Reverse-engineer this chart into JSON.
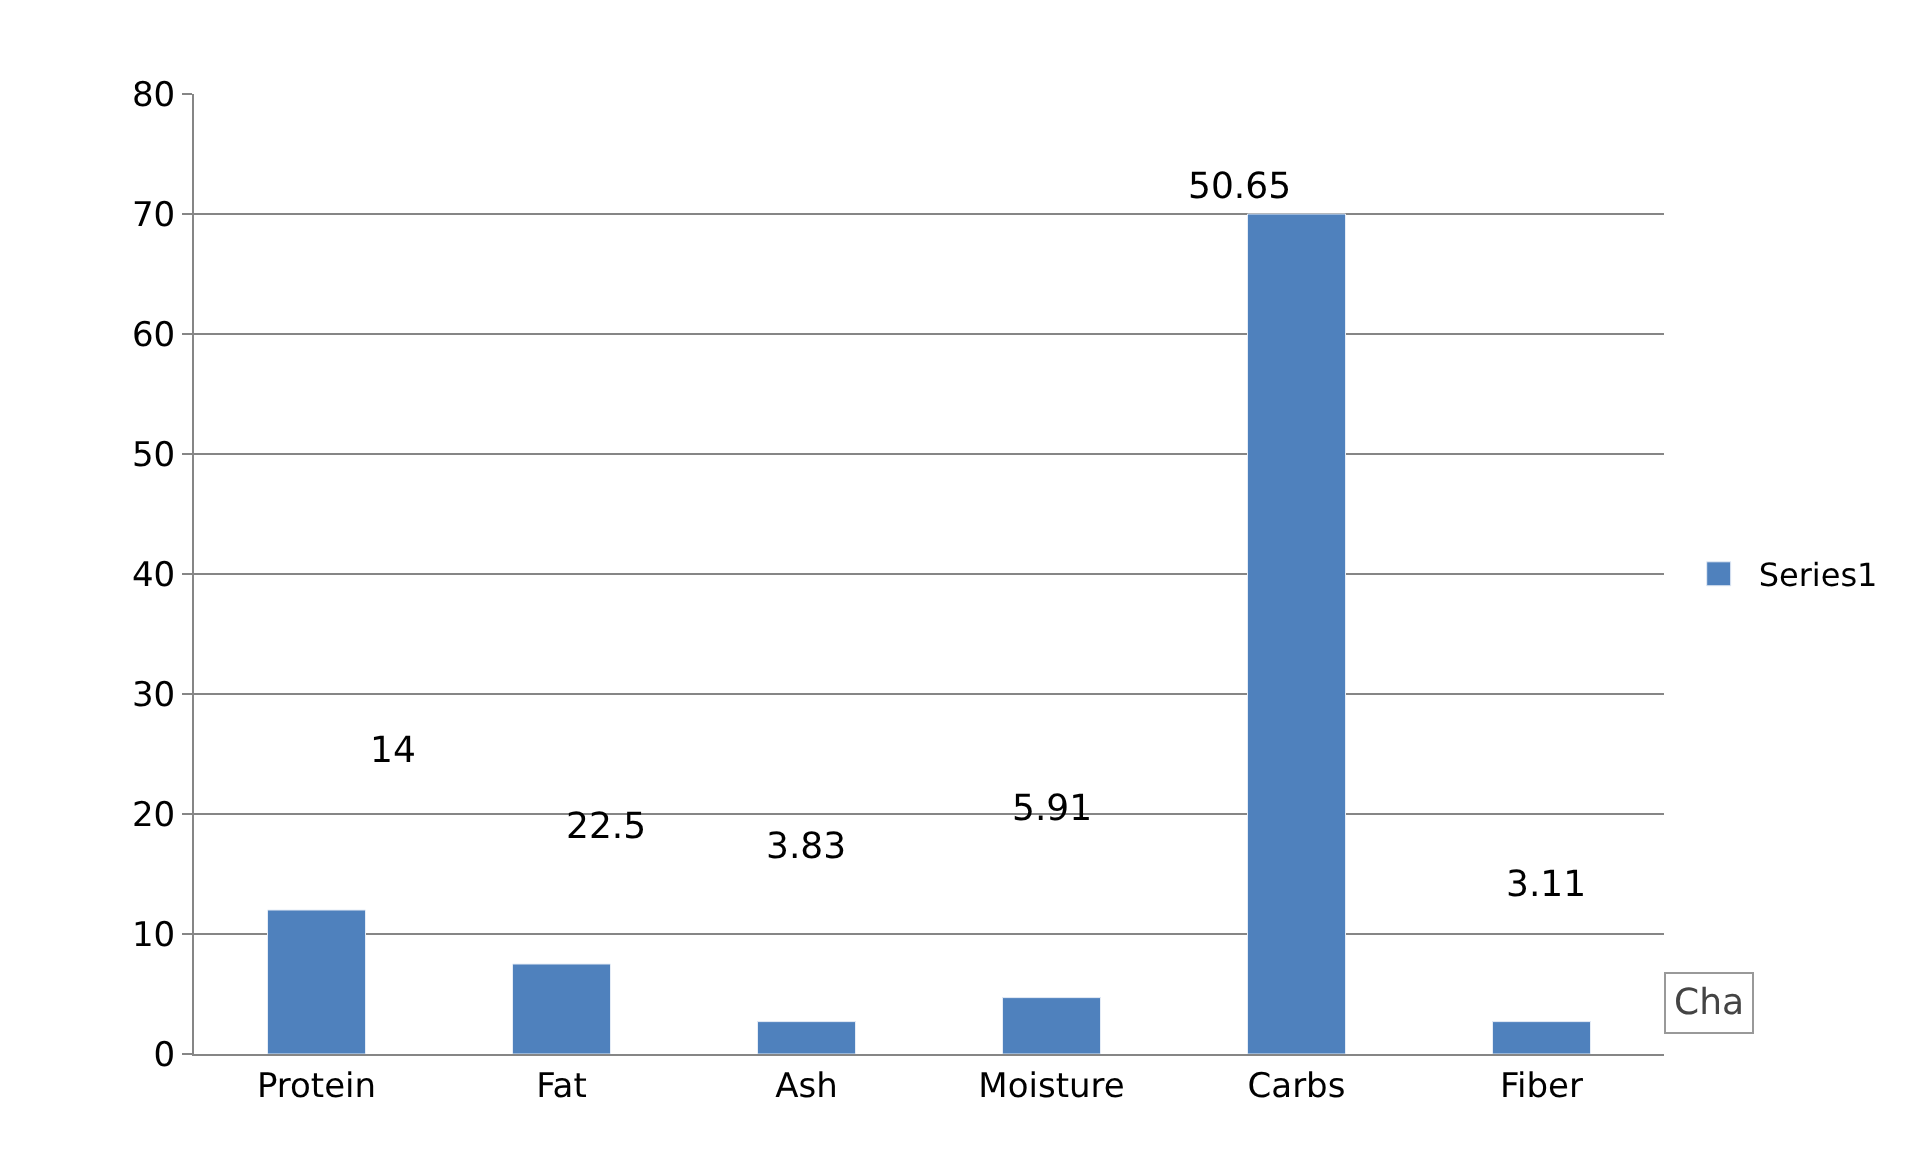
{
  "chart_data": {
    "type": "bar",
    "categories": [
      "Protein",
      "Fat",
      "Ash",
      "Moisture",
      "Carbs",
      "Fiber"
    ],
    "series": [
      {
        "name": "Series1",
        "color": "#4f81bd",
        "values": [
          12,
          7.5,
          2.7,
          4.7,
          70,
          2.7
        ]
      }
    ],
    "ylim": [
      0,
      80
    ],
    "yticks": [
      0,
      10,
      20,
      30,
      40,
      50,
      60,
      70,
      80
    ],
    "grid": "y",
    "legend": "right",
    "annotations": [
      "14",
      "22.5",
      "3.83",
      "5.91",
      "50.65",
      "3.11",
      "Cha"
    ]
  }
}
